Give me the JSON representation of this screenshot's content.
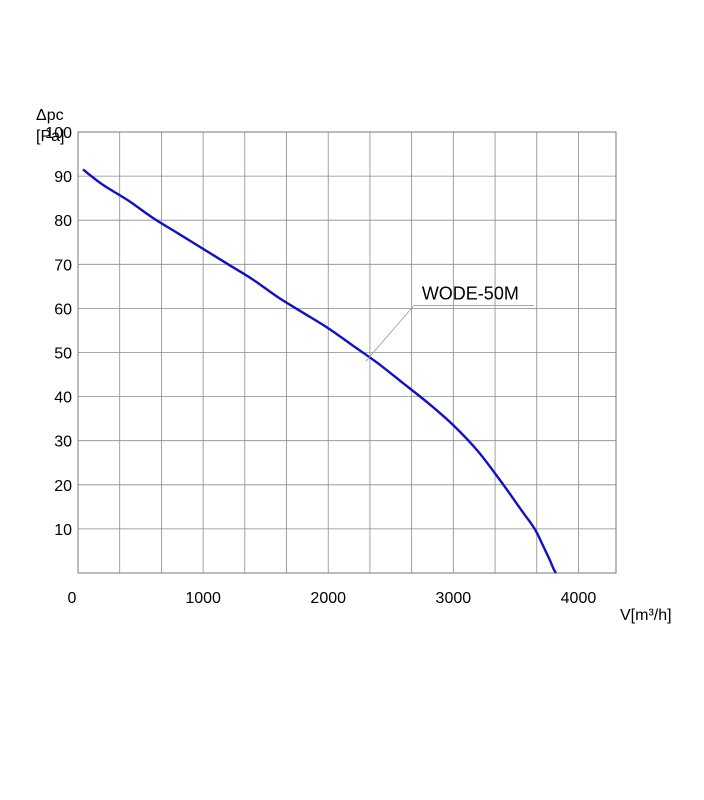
{
  "chart_data": {
    "type": "line",
    "title": "",
    "xlabel": "V[m³/h]",
    "ylabel_line1": "Δpc",
    "ylabel_line2": "[Pa]",
    "xlim": [
      0,
      4300
    ],
    "ylim": [
      0,
      100
    ],
    "grid": true,
    "x_minor_step": 333.33,
    "y_step": 10,
    "x_tick_labels": [
      "0",
      "1000",
      "2000",
      "3000",
      "4000"
    ],
    "x_tick_values": [
      0,
      1000,
      2000,
      3000,
      4000
    ],
    "y_tick_labels": [
      "10",
      "20",
      "30",
      "40",
      "50",
      "60",
      "70",
      "80",
      "90",
      "100"
    ],
    "y_tick_values": [
      10,
      20,
      30,
      40,
      50,
      60,
      70,
      80,
      90,
      100
    ],
    "series": [
      {
        "name": "WODE-50M",
        "color": "#1010c8",
        "x": [
          40,
          200,
          400,
          600,
          800,
          1000,
          1200,
          1400,
          1600,
          1800,
          2000,
          2200,
          2400,
          2600,
          2800,
          3000,
          3200,
          3400,
          3550,
          3650,
          3720,
          3770,
          3800,
          3820
        ],
        "y": [
          91.5,
          88,
          84.5,
          80.5,
          77,
          73.5,
          70,
          66.5,
          62.5,
          59,
          55.5,
          51.5,
          47.5,
          43,
          38.5,
          33.5,
          27.5,
          20,
          14,
          10,
          6,
          3,
          1,
          0
        ]
      }
    ],
    "annotations": [
      {
        "text": "WODE-50M",
        "x": 2300,
        "y": 48,
        "text_x": 2700,
        "text_y": 62
      }
    ]
  }
}
